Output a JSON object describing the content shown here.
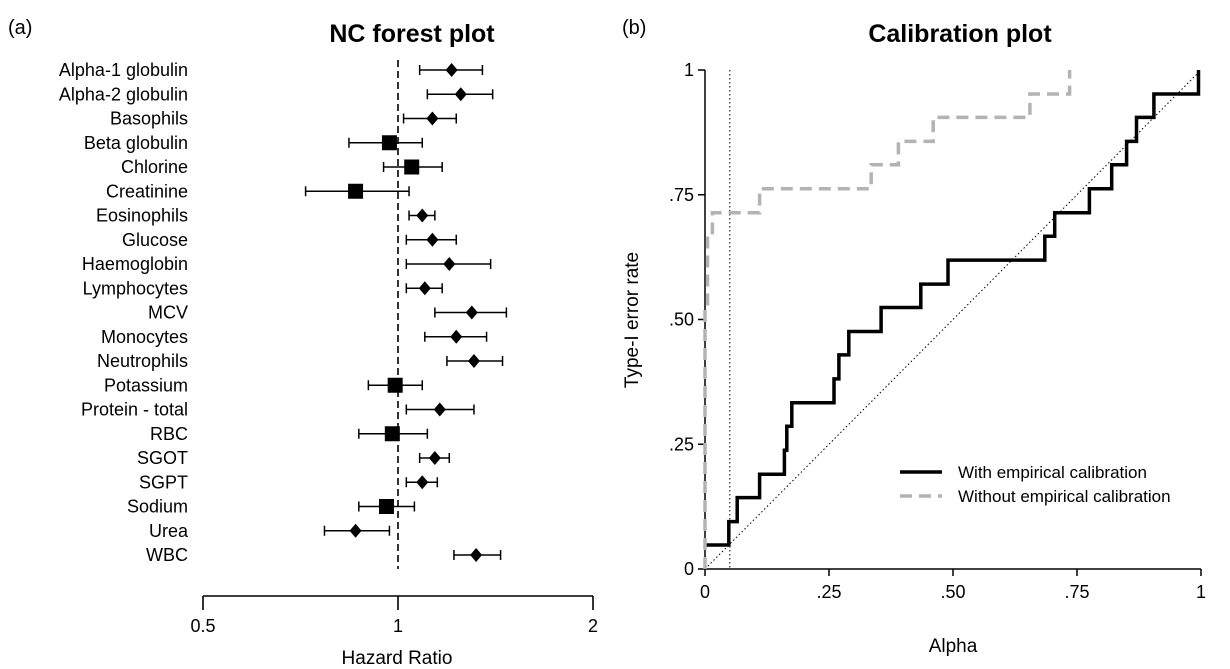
{
  "panel_a": {
    "tag": "(a)",
    "title": "NC forest plot",
    "xlabel": "Hazard Ratio"
  },
  "panel_b": {
    "tag": "(b)",
    "title": "Calibration plot",
    "xlabel": "Alpha",
    "ylabel": "Type-I error rate",
    "legend": {
      "calibrated": "With empirical calibration",
      "uncalibrated": "Without empirical calibration"
    }
  },
  "chart_data": [
    {
      "type": "forest",
      "title": "NC forest plot",
      "xlabel": "Hazard Ratio",
      "x_scale": "log",
      "xlim": [
        0.5,
        2
      ],
      "x_ticks": [
        {
          "value": 0.5,
          "label": "0.5"
        },
        {
          "value": 1,
          "label": "1"
        },
        {
          "value": 2,
          "label": "2"
        }
      ],
      "reference_line": 1,
      "rows": [
        {
          "label": "Alpha-1 globulin",
          "hr": 1.21,
          "lo": 1.08,
          "hi": 1.35,
          "marker": "diamond"
        },
        {
          "label": "Alpha-2 globulin",
          "hr": 1.25,
          "lo": 1.11,
          "hi": 1.4,
          "marker": "diamond"
        },
        {
          "label": "Basophils",
          "hr": 1.13,
          "lo": 1.02,
          "hi": 1.23,
          "marker": "diamond"
        },
        {
          "label": "Beta globulin",
          "hr": 0.97,
          "lo": 0.84,
          "hi": 1.09,
          "marker": "square"
        },
        {
          "label": "Chlorine",
          "hr": 1.05,
          "lo": 0.95,
          "hi": 1.17,
          "marker": "square"
        },
        {
          "label": "Creatinine",
          "hr": 0.86,
          "lo": 0.72,
          "hi": 1.04,
          "marker": "square"
        },
        {
          "label": "Eosinophils",
          "hr": 1.09,
          "lo": 1.04,
          "hi": 1.14,
          "marker": "diamond"
        },
        {
          "label": "Glucose",
          "hr": 1.13,
          "lo": 1.03,
          "hi": 1.23,
          "marker": "diamond"
        },
        {
          "label": "Haemoglobin",
          "hr": 1.2,
          "lo": 1.03,
          "hi": 1.39,
          "marker": "diamond"
        },
        {
          "label": "Lymphocytes",
          "hr": 1.1,
          "lo": 1.03,
          "hi": 1.17,
          "marker": "diamond"
        },
        {
          "label": "MCV",
          "hr": 1.3,
          "lo": 1.14,
          "hi": 1.47,
          "marker": "diamond"
        },
        {
          "label": "Monocytes",
          "hr": 1.23,
          "lo": 1.1,
          "hi": 1.37,
          "marker": "diamond"
        },
        {
          "label": "Neutrophils",
          "hr": 1.31,
          "lo": 1.19,
          "hi": 1.45,
          "marker": "diamond"
        },
        {
          "label": "Potassium",
          "hr": 0.99,
          "lo": 0.9,
          "hi": 1.09,
          "marker": "square"
        },
        {
          "label": "Protein - total",
          "hr": 1.16,
          "lo": 1.03,
          "hi": 1.31,
          "marker": "diamond"
        },
        {
          "label": "RBC",
          "hr": 0.98,
          "lo": 0.87,
          "hi": 1.11,
          "marker": "square"
        },
        {
          "label": "SGOT",
          "hr": 1.14,
          "lo": 1.08,
          "hi": 1.2,
          "marker": "diamond"
        },
        {
          "label": "SGPT",
          "hr": 1.09,
          "lo": 1.03,
          "hi": 1.15,
          "marker": "diamond"
        },
        {
          "label": "Sodium",
          "hr": 0.96,
          "lo": 0.87,
          "hi": 1.06,
          "marker": "square"
        },
        {
          "label": "Urea",
          "hr": 0.86,
          "lo": 0.77,
          "hi": 0.97,
          "marker": "diamond"
        },
        {
          "label": "WBC",
          "hr": 1.32,
          "lo": 1.22,
          "hi": 1.44,
          "marker": "diamond"
        }
      ]
    },
    {
      "type": "line",
      "title": "Calibration plot",
      "xlabel": "Alpha",
      "ylabel": "Type-I error rate",
      "xlim": [
        0,
        1
      ],
      "ylim": [
        0,
        1
      ],
      "x_ticks": [
        {
          "value": 0,
          "label": "0"
        },
        {
          "value": 0.25,
          "label": ".25"
        },
        {
          "value": 0.5,
          "label": ".50"
        },
        {
          "value": 0.75,
          "label": ".75"
        },
        {
          "value": 1,
          "label": "1"
        }
      ],
      "y_ticks": [
        {
          "value": 0,
          "label": "0"
        },
        {
          "value": 0.25,
          "label": ".25"
        },
        {
          "value": 0.5,
          "label": ".50"
        },
        {
          "value": 0.75,
          "label": ".75"
        },
        {
          "value": 1,
          "label": "1"
        }
      ],
      "reference_vline": 0.05,
      "diagonal": true,
      "legend_position": "bottom-right",
      "series": [
        {
          "name": "With empirical calibration",
          "style": "solid",
          "color": "#000000",
          "steps": [
            [
              0,
              0.048
            ],
            [
              0.048,
              0.048
            ],
            [
              0.048,
              0.095
            ],
            [
              0.065,
              0.095
            ],
            [
              0.065,
              0.143
            ],
            [
              0.11,
              0.143
            ],
            [
              0.11,
              0.19
            ],
            [
              0.16,
              0.19
            ],
            [
              0.16,
              0.238
            ],
            [
              0.165,
              0.238
            ],
            [
              0.165,
              0.286
            ],
            [
              0.175,
              0.286
            ],
            [
              0.175,
              0.333
            ],
            [
              0.26,
              0.333
            ],
            [
              0.26,
              0.381
            ],
            [
              0.27,
              0.381
            ],
            [
              0.27,
              0.429
            ],
            [
              0.29,
              0.429
            ],
            [
              0.29,
              0.476
            ],
            [
              0.355,
              0.476
            ],
            [
              0.355,
              0.524
            ],
            [
              0.435,
              0.524
            ],
            [
              0.435,
              0.571
            ],
            [
              0.49,
              0.571
            ],
            [
              0.49,
              0.619
            ],
            [
              0.685,
              0.619
            ],
            [
              0.685,
              0.667
            ],
            [
              0.705,
              0.667
            ],
            [
              0.705,
              0.714
            ],
            [
              0.775,
              0.714
            ],
            [
              0.775,
              0.762
            ],
            [
              0.82,
              0.762
            ],
            [
              0.82,
              0.81
            ],
            [
              0.85,
              0.81
            ],
            [
              0.85,
              0.857
            ],
            [
              0.87,
              0.857
            ],
            [
              0.87,
              0.905
            ],
            [
              0.905,
              0.905
            ],
            [
              0.905,
              0.952
            ],
            [
              0.995,
              0.952
            ],
            [
              0.995,
              1.0
            ]
          ]
        },
        {
          "name": "Without empirical calibration",
          "style": "dashed",
          "color": "#b3b3b3",
          "steps": [
            [
              0,
              0
            ],
            [
              0,
              0.524
            ],
            [
              0.005,
              0.524
            ],
            [
              0.005,
              0.667
            ],
            [
              0.015,
              0.667
            ],
            [
              0.015,
              0.714
            ],
            [
              0.11,
              0.714
            ],
            [
              0.11,
              0.762
            ],
            [
              0.335,
              0.762
            ],
            [
              0.335,
              0.81
            ],
            [
              0.39,
              0.81
            ],
            [
              0.39,
              0.857
            ],
            [
              0.46,
              0.857
            ],
            [
              0.46,
              0.905
            ],
            [
              0.655,
              0.905
            ],
            [
              0.655,
              0.952
            ],
            [
              0.735,
              0.952
            ],
            [
              0.735,
              1.0
            ]
          ]
        }
      ]
    }
  ]
}
